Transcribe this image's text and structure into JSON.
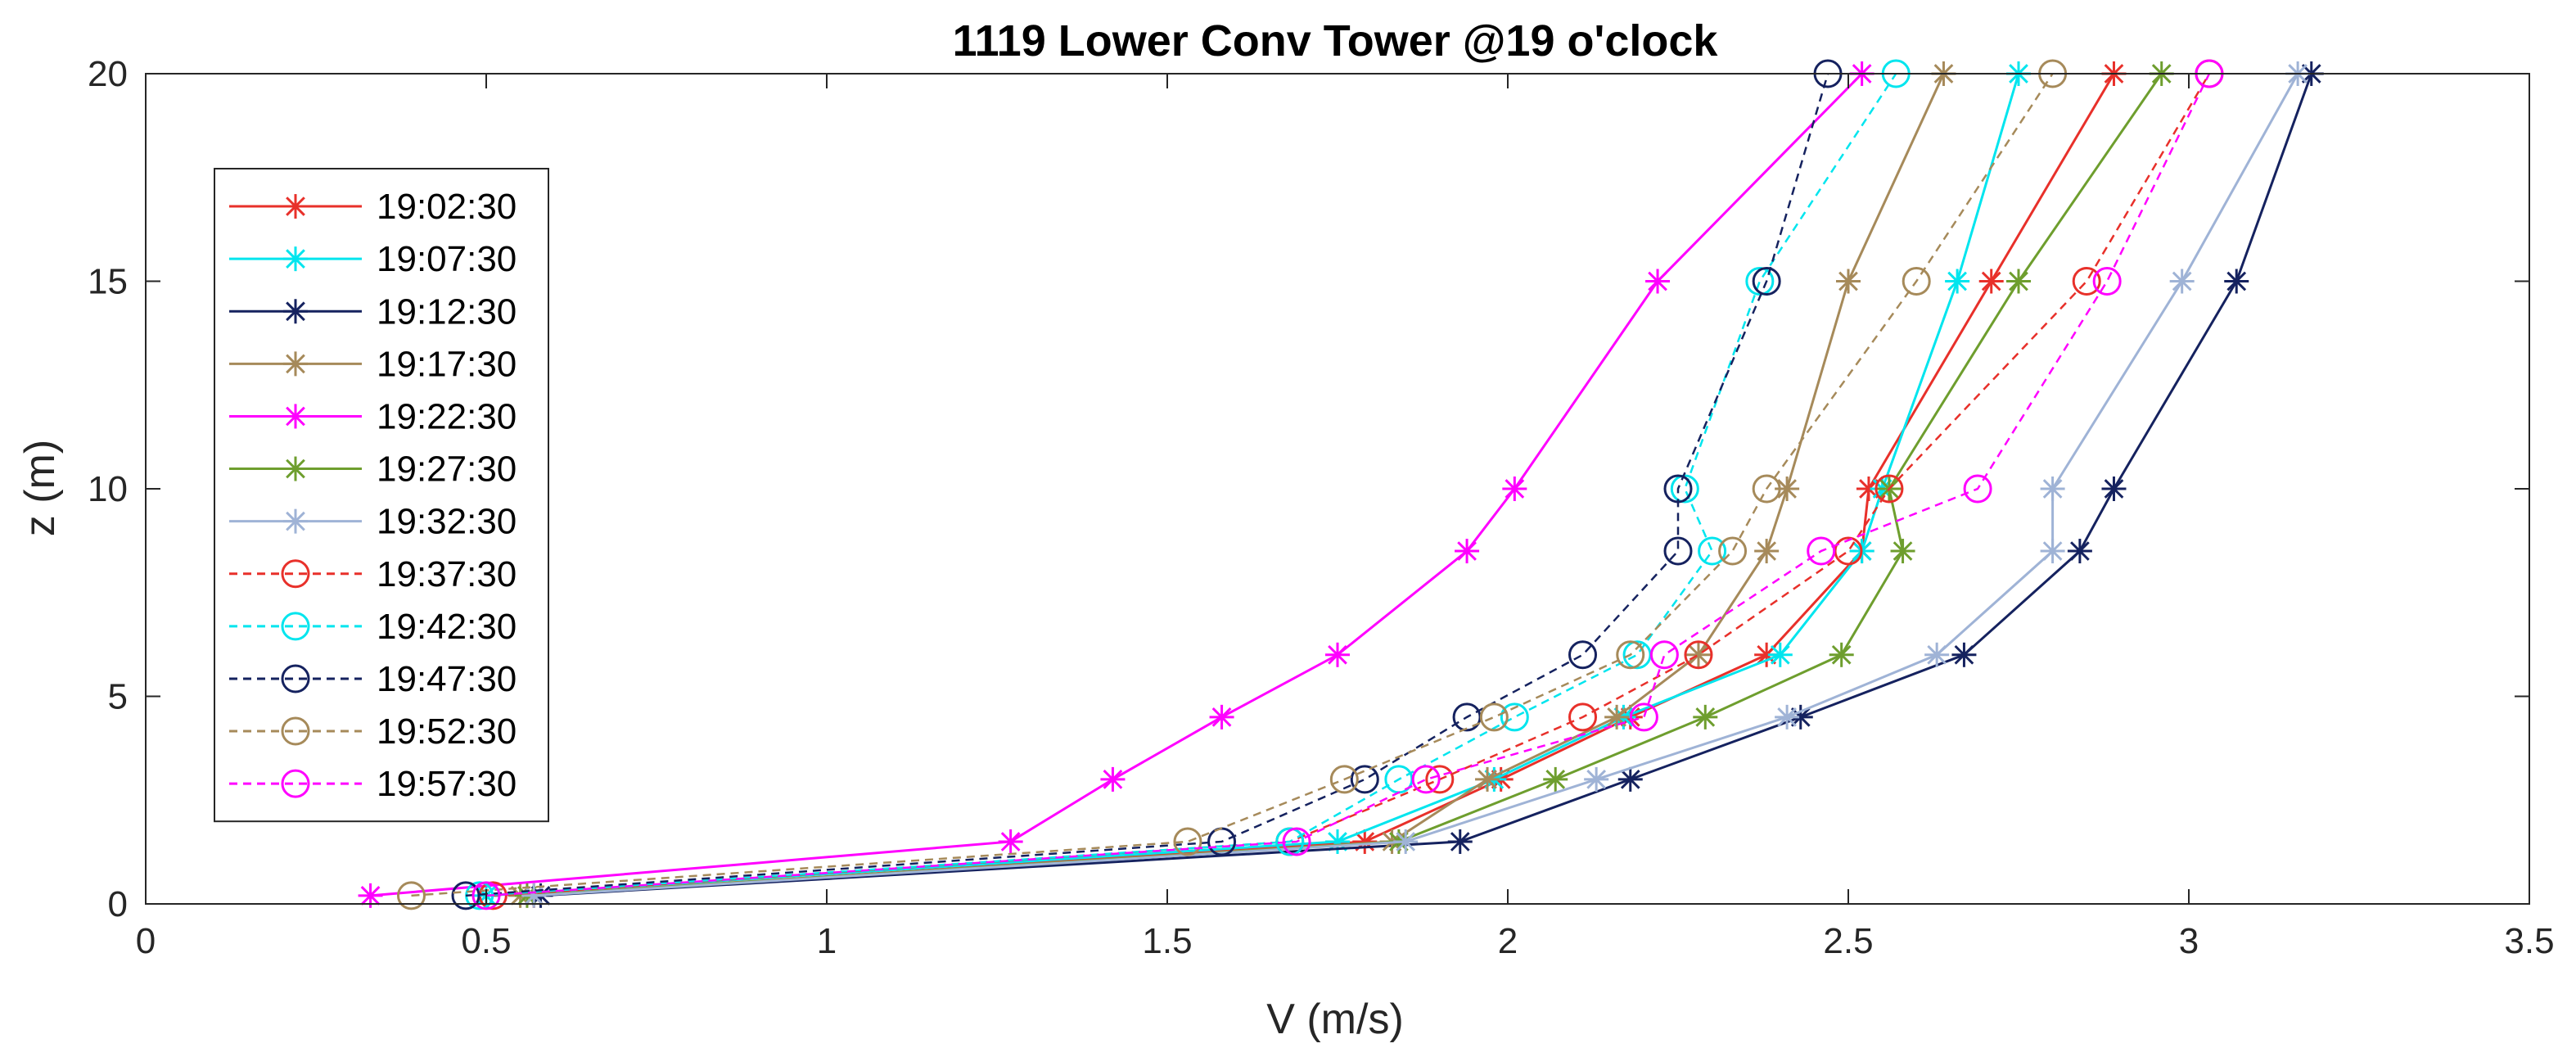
{
  "chart_data": {
    "type": "line",
    "title": "1119 Lower Conv Tower @19 o'clock",
    "xlabel": "V (m/s)",
    "ylabel": "z (m)",
    "xlim": [
      0,
      3.5
    ],
    "ylim": [
      0,
      20
    ],
    "xticks": [
      "0",
      "0.5",
      "1",
      "1.5",
      "2",
      "2.5",
      "3",
      "3.5"
    ],
    "yticks": [
      "0",
      "5",
      "10",
      "15",
      "20"
    ],
    "grid": false,
    "legend_position": "top-left",
    "z": [
      0.2,
      1.5,
      3,
      4.5,
      6,
      8.5,
      10,
      15,
      20
    ],
    "series": [
      {
        "name": "19:02:30",
        "color": "#e8302a",
        "marker": "asterisk",
        "dash": "solid",
        "values": [
          0.57,
          1.79,
          1.99,
          2.18,
          2.38,
          2.52,
          2.53,
          2.71,
          2.89
        ]
      },
      {
        "name": "19:07:30",
        "color": "#00e5ee",
        "marker": "asterisk",
        "dash": "solid",
        "values": [
          0.5,
          1.75,
          1.98,
          2.17,
          2.4,
          2.52,
          2.55,
          2.66,
          2.75
        ]
      },
      {
        "name": "19:12:30",
        "color": "#15225f",
        "marker": "asterisk",
        "dash": "solid",
        "values": [
          0.58,
          1.93,
          2.18,
          2.43,
          2.67,
          2.84,
          2.89,
          3.07,
          3.18
        ]
      },
      {
        "name": "19:17:30",
        "color": "#a68a5a",
        "marker": "asterisk",
        "dash": "solid",
        "values": [
          0.55,
          1.83,
          1.97,
          2.16,
          2.28,
          2.38,
          2.41,
          2.5,
          2.64
        ]
      },
      {
        "name": "19:22:30",
        "color": "#ff00ff",
        "marker": "asterisk",
        "dash": "solid",
        "values": [
          0.33,
          1.27,
          1.42,
          1.58,
          1.75,
          1.94,
          2.01,
          2.22,
          2.52
        ]
      },
      {
        "name": "19:27:30",
        "color": "#6e9e2e",
        "marker": "asterisk",
        "dash": "solid",
        "values": [
          0.56,
          1.84,
          2.07,
          2.29,
          2.49,
          2.58,
          2.56,
          2.75,
          2.96
        ]
      },
      {
        "name": "19:32:30",
        "color": "#9fb3d6",
        "marker": "asterisk",
        "dash": "solid",
        "values": [
          0.57,
          1.85,
          2.13,
          2.41,
          2.63,
          2.8,
          2.8,
          2.99,
          3.16
        ]
      },
      {
        "name": "19:37:30",
        "color": "#e8302a",
        "marker": "circle",
        "dash": "dashed",
        "values": [
          0.51,
          1.68,
          1.9,
          2.11,
          2.28,
          2.5,
          2.56,
          2.85,
          3.03
        ]
      },
      {
        "name": "19:42:30",
        "color": "#00e5ee",
        "marker": "circle",
        "dash": "dashed",
        "values": [
          0.49,
          1.68,
          1.84,
          2.01,
          2.19,
          2.3,
          2.26,
          2.37,
          2.57
        ]
      },
      {
        "name": "19:47:30",
        "color": "#15225f",
        "marker": "circle",
        "dash": "dashed",
        "values": [
          0.47,
          1.58,
          1.79,
          1.94,
          2.11,
          2.25,
          2.25,
          2.38,
          2.47
        ]
      },
      {
        "name": "19:52:30",
        "color": "#a68a5a",
        "marker": "circle",
        "dash": "dashed",
        "values": [
          0.39,
          1.53,
          1.76,
          1.98,
          2.18,
          2.33,
          2.38,
          2.6,
          2.8
        ]
      },
      {
        "name": "19:57:30",
        "color": "#ff00ff",
        "marker": "circle",
        "dash": "dashed",
        "values": [
          0.5,
          1.69,
          1.88,
          2.2,
          2.23,
          2.46,
          2.69,
          2.88,
          3.03
        ]
      }
    ]
  }
}
